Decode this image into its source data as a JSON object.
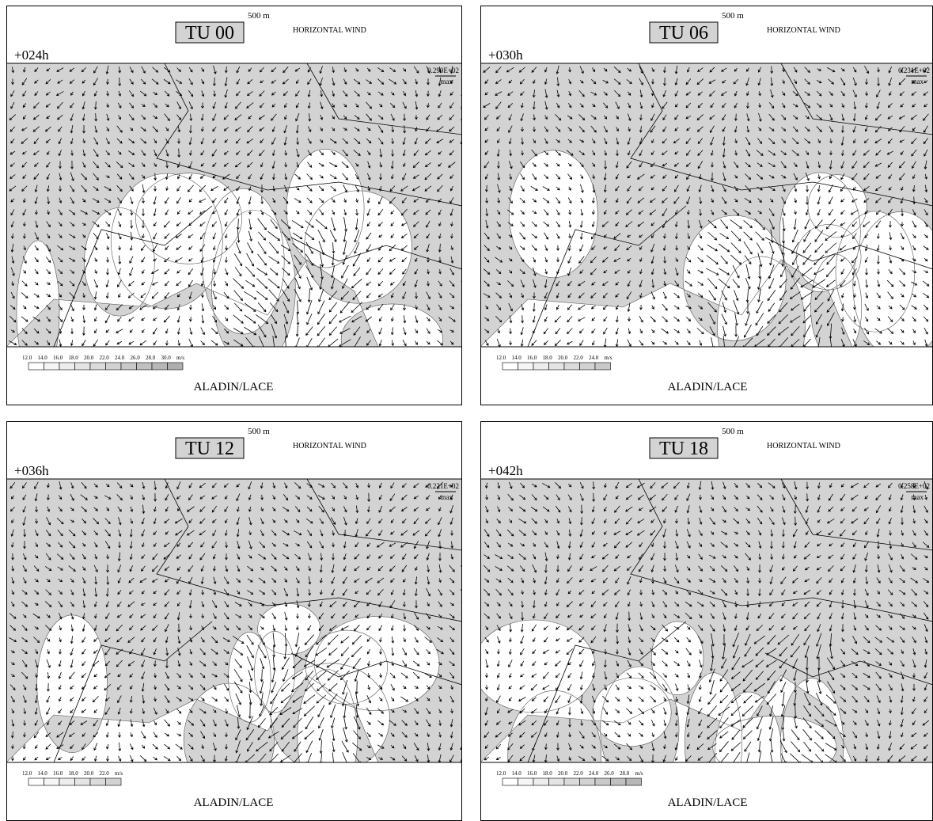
{
  "panels": [
    {
      "level": "500 m",
      "title": "TU 00",
      "field": "HORIZONTAL WIND",
      "lead": "+024h",
      "max_value": "0.290E+02",
      "max_label": "max",
      "scale_labels": [
        "12.0",
        "14.0",
        "16.0",
        "18.0",
        "20.0",
        "22.0",
        "24.0",
        "26.0",
        "28.0",
        "30.0"
      ],
      "unit": "m/s",
      "model": "ALADIN/LACE"
    },
    {
      "level": "500 m",
      "title": "TU 06",
      "field": "HORIZONTAL WIND",
      "lead": "+030h",
      "max_value": "0.231E+02",
      "max_label": "max",
      "scale_labels": [
        "12.0",
        "14.0",
        "16.0",
        "18.0",
        "20.0",
        "22.0",
        "24.0"
      ],
      "unit": "m/s",
      "model": "ALADIN/LACE"
    },
    {
      "level": "500 m",
      "title": "TU 12",
      "field": "HORIZONTAL WIND",
      "lead": "+036h",
      "max_value": "0.221E+02",
      "max_label": "max",
      "scale_labels": [
        "12.0",
        "14.0",
        "16.0",
        "18.0",
        "20.0",
        "22.0"
      ],
      "unit": "m/s",
      "model": "ALADIN/LACE"
    },
    {
      "level": "500 m",
      "title": "TU 18",
      "field": "HORIZONTAL WIND",
      "lead": "+042h",
      "max_value": "0.258E+02",
      "max_label": "max",
      "scale_labels": [
        "12.0",
        "14.0",
        "16.0",
        "18.0",
        "20.0",
        "22.0",
        "24.0",
        "26.0",
        "28.0"
      ],
      "unit": "m/s",
      "model": "ALADIN/LACE"
    }
  ]
}
